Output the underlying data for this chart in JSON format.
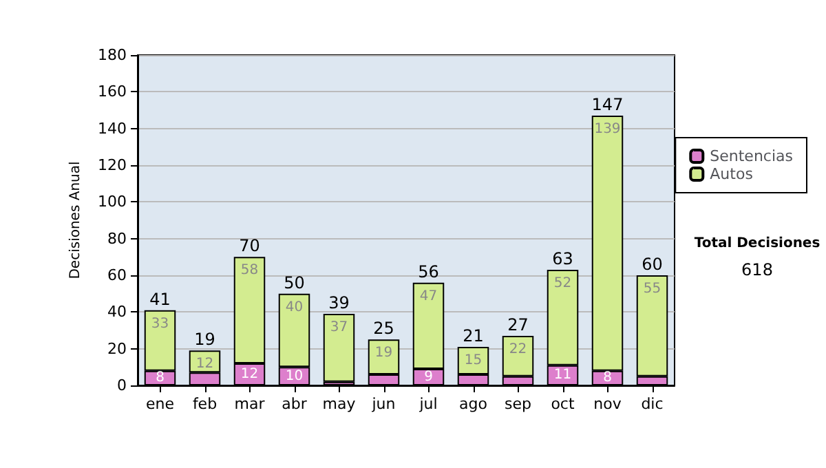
{
  "chart_data": {
    "type": "bar",
    "stacked": true,
    "ylabel": "Decisiones Anual",
    "categories": [
      "ene",
      "feb",
      "mar",
      "abr",
      "may",
      "jun",
      "jul",
      "ago",
      "sep",
      "oct",
      "nov",
      "dic"
    ],
    "series": [
      {
        "name": "Sentencias",
        "color": "#dd7fcc",
        "values": [
          8,
          7,
          12,
          10,
          2,
          6,
          9,
          6,
          5,
          11,
          8,
          5
        ],
        "value_labels": [
          "8",
          null,
          "12",
          "10",
          null,
          null,
          "9",
          null,
          null,
          "11",
          "8",
          null
        ]
      },
      {
        "name": "Autos",
        "color": "#d3ec90",
        "values": [
          33,
          12,
          58,
          40,
          37,
          19,
          47,
          15,
          22,
          52,
          139,
          55
        ],
        "value_labels": [
          "33",
          "12",
          "58",
          "40",
          "37",
          "19",
          "47",
          "15",
          "22",
          "52",
          "139",
          "55"
        ]
      }
    ],
    "totals": [
      "41",
      "19",
      "70",
      "50",
      "39",
      "25",
      "56",
      "21",
      "27",
      "63",
      "147",
      "60"
    ],
    "ylim": [
      0,
      180
    ],
    "yticks": [
      0,
      20,
      40,
      60,
      80,
      100,
      120,
      140,
      160,
      180
    ],
    "grid": "y",
    "legend": "right",
    "annotations": [
      "Total Decisiones",
      "618"
    ]
  }
}
